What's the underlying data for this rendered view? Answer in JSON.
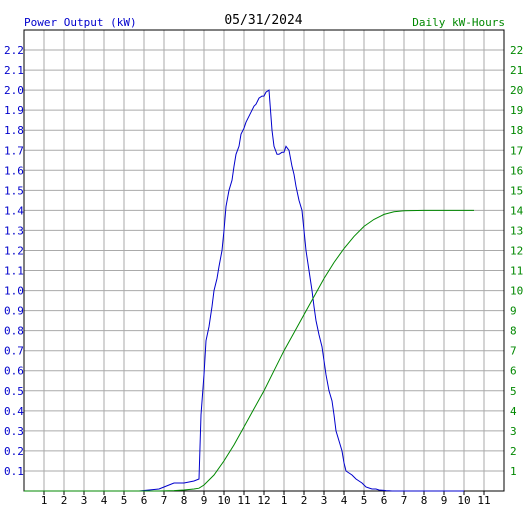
{
  "chart_data": {
    "type": "line",
    "title": "05/31/2024",
    "y_left_label": "Power Output (kW)",
    "y_right_label": "Daily kW-Hours",
    "x_ticks": [
      "1",
      "2",
      "3",
      "4",
      "5",
      "6",
      "7",
      "8",
      "9",
      "10",
      "11",
      "12",
      "1",
      "2",
      "3",
      "4",
      "5",
      "6",
      "7",
      "8",
      "9",
      "10",
      "11"
    ],
    "y_left_range": [
      0,
      2.3
    ],
    "y_left_ticks": [
      "0.1",
      "0.2",
      "0.3",
      "0.4",
      "0.5",
      "0.6",
      "0.7",
      "0.8",
      "0.9",
      "1.0",
      "1.1",
      "1.2",
      "1.3",
      "1.4",
      "1.5",
      "1.6",
      "1.7",
      "1.8",
      "1.9",
      "2.0",
      "2.1",
      "2.2"
    ],
    "y_right_range": [
      0,
      23
    ],
    "y_right_ticks": [
      "1",
      "2",
      "3",
      "4",
      "5",
      "6",
      "7",
      "8",
      "9",
      "10",
      "11",
      "12",
      "13",
      "14",
      "15",
      "16",
      "17",
      "18",
      "19",
      "20",
      "21",
      "22"
    ],
    "grid": true,
    "colors": {
      "power": "#0000cc",
      "energy": "#008800",
      "grid": "#aaaaaa",
      "axis": "#000000"
    },
    "series": [
      {
        "axis": "left",
        "color": "#0000cc",
        "x": [
          0,
          5.75,
          6.75,
          7,
          7.25,
          7.5,
          8,
          8.5,
          8.75,
          8.85,
          9,
          9.1,
          9.25,
          9.4,
          9.5,
          9.65,
          9.75,
          9.9,
          10,
          10.1,
          10.25,
          10.4,
          10.5,
          10.6,
          10.75,
          10.85,
          11,
          11.1,
          11.25,
          11.4,
          11.5,
          11.6,
          11.75,
          11.9,
          12,
          12.1,
          12.25,
          12.4,
          12.5,
          12.65,
          12.75,
          12.9,
          13,
          13.1,
          13.25,
          13.4,
          13.5,
          13.6,
          13.75,
          13.9,
          14,
          14.1,
          14.25,
          14.4,
          14.5,
          14.6,
          14.75,
          14.9,
          15,
          15.1,
          15.25,
          15.4,
          15.5,
          15.6,
          15.75,
          15.9,
          16,
          16.1,
          16.25,
          16.4,
          16.5,
          16.6,
          16.75,
          16.9,
          17,
          17.1,
          17.25,
          17.4,
          17.5,
          17.6,
          17.75,
          17.9,
          18,
          18.1,
          18.25,
          18.4,
          18.5,
          18.6,
          18.75,
          18.9,
          19,
          19.1,
          19.25,
          19.4,
          19.5,
          19.6,
          19.75,
          19.9,
          20,
          20.25,
          20.5,
          20.75,
          21,
          21.25,
          21.5,
          21.75,
          22
        ],
        "y": [
          0,
          0,
          0.01,
          0.02,
          0.03,
          0.04,
          0.04,
          0.05,
          0.06,
          0.38,
          0.58,
          0.75,
          0.82,
          0.92,
          1.0,
          1.06,
          1.12,
          1.2,
          1.3,
          1.42,
          1.5,
          1.55,
          1.62,
          1.68,
          1.72,
          1.78,
          1.81,
          1.84,
          1.87,
          1.9,
          1.92,
          1.93,
          1.96,
          1.97,
          1.97,
          1.99,
          2.0,
          1.8,
          1.72,
          1.68,
          1.68,
          1.69,
          1.69,
          1.72,
          1.7,
          1.62,
          1.58,
          1.52,
          1.45,
          1.4,
          1.3,
          1.2,
          1.1,
          1.0,
          0.92,
          0.85,
          0.78,
          0.72,
          0.65,
          0.58,
          0.5,
          0.45,
          0.38,
          0.3,
          0.25,
          0.2,
          0.14,
          0.1,
          0.09,
          0.08,
          0.07,
          0.06,
          0.05,
          0.04,
          0.03,
          0.02,
          0.015,
          0.01,
          0.01,
          0.01,
          0.005,
          0.004,
          0.003,
          0.002,
          0.001,
          0,
          0,
          0,
          0,
          0,
          0,
          0,
          0,
          0,
          0,
          0,
          0,
          0,
          0,
          0,
          0,
          0,
          0,
          0,
          0,
          0,
          0
        ]
      },
      {
        "axis": "right",
        "color": "#008800",
        "x": [
          0,
          6.75,
          7.5,
          8,
          8.5,
          8.75,
          9,
          9.5,
          10,
          10.5,
          11,
          11.5,
          12,
          12.5,
          13,
          13.5,
          14,
          14.5,
          15,
          15.5,
          16,
          16.5,
          17,
          17.5,
          18,
          18.5,
          19,
          20,
          22.5
        ],
        "y": [
          0,
          0,
          0.02,
          0.05,
          0.1,
          0.14,
          0.3,
          0.8,
          1.5,
          2.3,
          3.2,
          4.1,
          5.0,
          6.0,
          7.0,
          7.9,
          8.8,
          9.7,
          10.6,
          11.4,
          12.1,
          12.7,
          13.2,
          13.55,
          13.8,
          13.93,
          13.98,
          14.0,
          14.0
        ]
      }
    ]
  }
}
